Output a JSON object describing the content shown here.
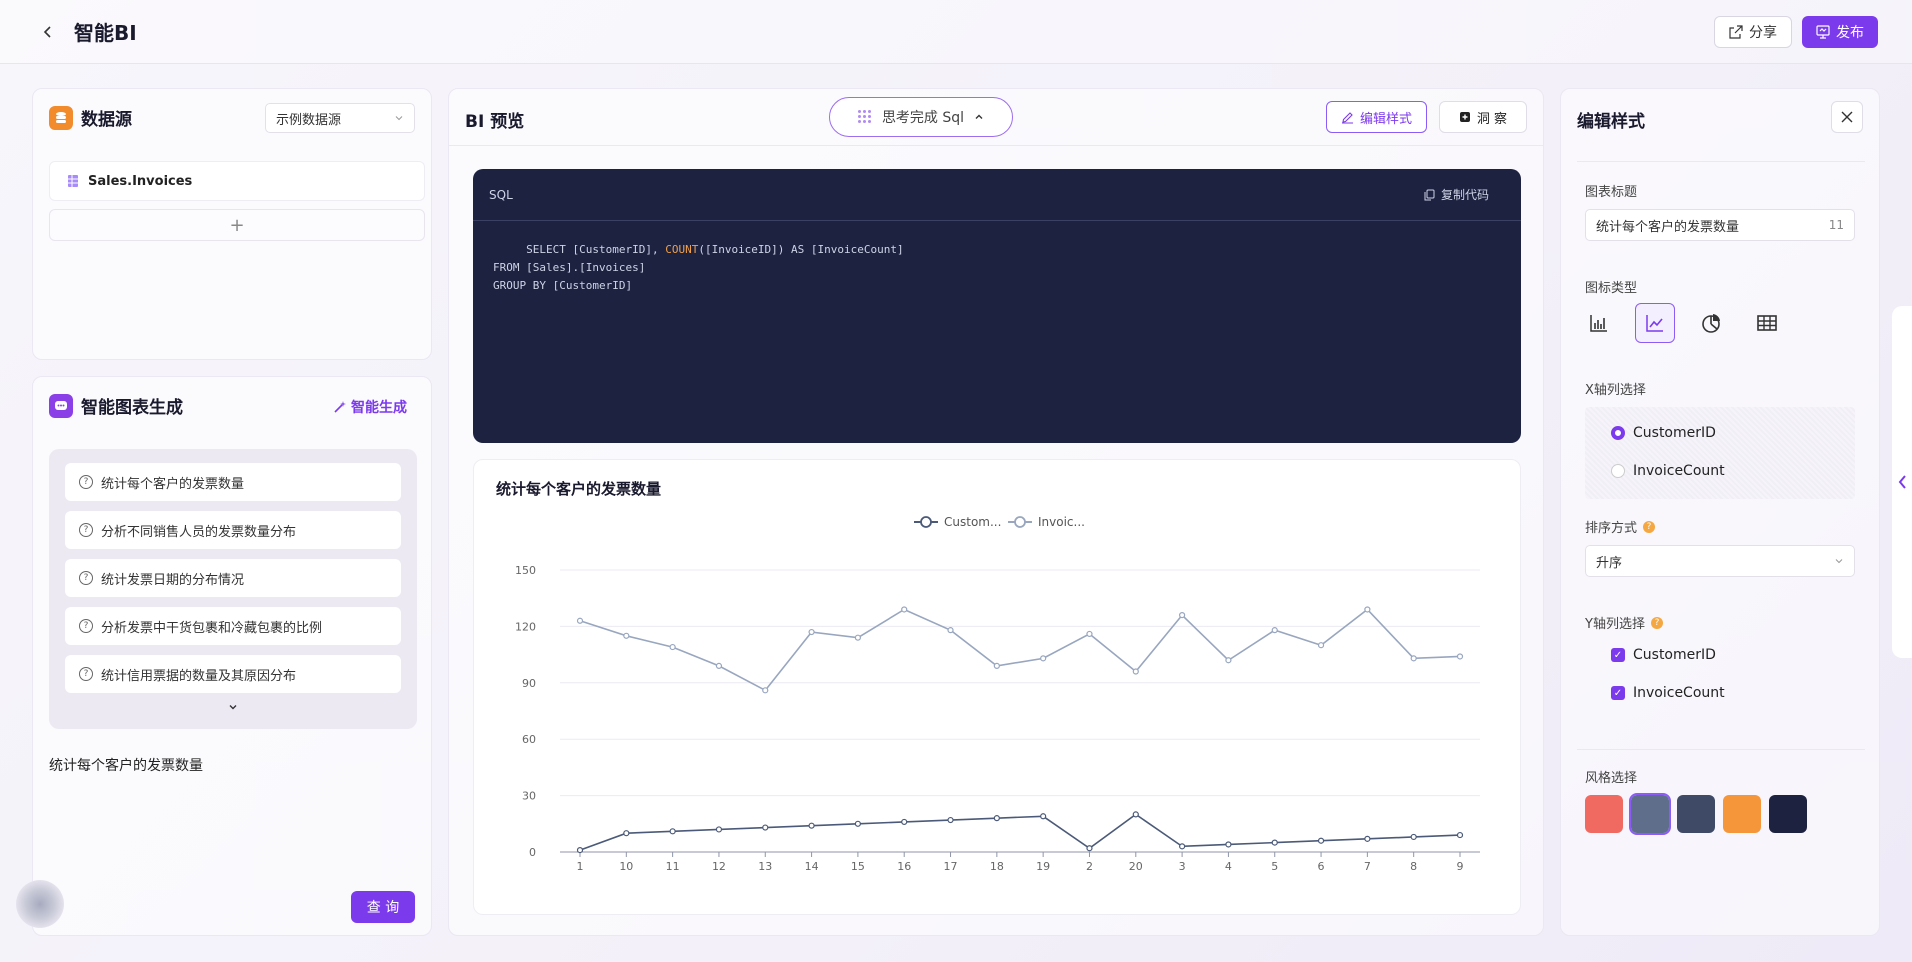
{
  "header": {
    "title": "智能BI",
    "share_label": "分享",
    "publish_label": "发布"
  },
  "datasource": {
    "title": "数据源",
    "select_value": "示例数据源",
    "tables": [
      "Sales.Invoices"
    ],
    "add_label": "+"
  },
  "smart_chart": {
    "title": "智能图表生成",
    "generate_label": "智能生成",
    "suggestions": [
      "统计每个客户的发票数量",
      "分析不同销售人员的发票数量分布",
      "统计发票日期的分布情况",
      "分析发票中干货包裹和冷藏包裹的比例",
      "统计信用票据的数量及其原因分布"
    ],
    "query_text": "统计每个客户的发票数量",
    "query_button": "查 询"
  },
  "preview": {
    "title": "BI 预览",
    "sql_toggle_label": "思考完成 Sql",
    "edit_style_label": "编辑样式",
    "insight_label": "洞 察",
    "sql_label": "SQL",
    "copy_label": "复制代码",
    "sql_lines": {
      "l1_a": "SELECT [CustomerID], ",
      "l1_kw": "COUNT",
      "l1_b": "([InvoiceID]) AS [InvoiceCount]",
      "l2": "FROM [Sales].[Invoices]",
      "l3": "GROUP BY [CustomerID]"
    }
  },
  "chart_data": {
    "type": "line",
    "title": "统计每个客户的发票数量",
    "categories": [
      "1",
      "10",
      "11",
      "12",
      "13",
      "14",
      "15",
      "16",
      "17",
      "18",
      "19",
      "2",
      "20",
      "3",
      "4",
      "5",
      "6",
      "7",
      "8",
      "9"
    ],
    "series": [
      {
        "name": "Custom...",
        "color": "#4b5a78",
        "values": [
          1,
          10,
          11,
          12,
          13,
          14,
          15,
          16,
          17,
          18,
          19,
          2,
          20,
          3,
          4,
          5,
          6,
          7,
          8,
          9
        ]
      },
      {
        "name": "Invoic...",
        "color": "#98a6bf",
        "values": [
          123,
          115,
          109,
          99,
          86,
          117,
          114,
          129,
          118,
          99,
          103,
          116,
          96,
          126,
          102,
          118,
          110,
          129,
          103,
          104
        ]
      }
    ],
    "ylim": [
      0,
      150
    ],
    "yticks": [
      0,
      30,
      60,
      90,
      120,
      150
    ],
    "legend": "top-center",
    "grid": true
  },
  "edit_style": {
    "title": "编辑样式",
    "chart_title_label": "图表标题",
    "chart_title_value": "统计每个客户的发票数量",
    "chart_title_count": "11",
    "chart_type_label": "图标类型",
    "x_axis_label": "X轴列选择",
    "x_options": [
      "CustomerID",
      "InvoiceCount"
    ],
    "sort_label": "排序方式",
    "sort_value": "升序",
    "y_axis_label": "Y轴列选择",
    "y_options": [
      "CustomerID",
      "InvoiceCount"
    ],
    "style_label": "风格选择",
    "style_colors": [
      "#f06a62",
      "#5f6e8a",
      "#3f4a66",
      "#f5963a",
      "#1c2240"
    ]
  }
}
